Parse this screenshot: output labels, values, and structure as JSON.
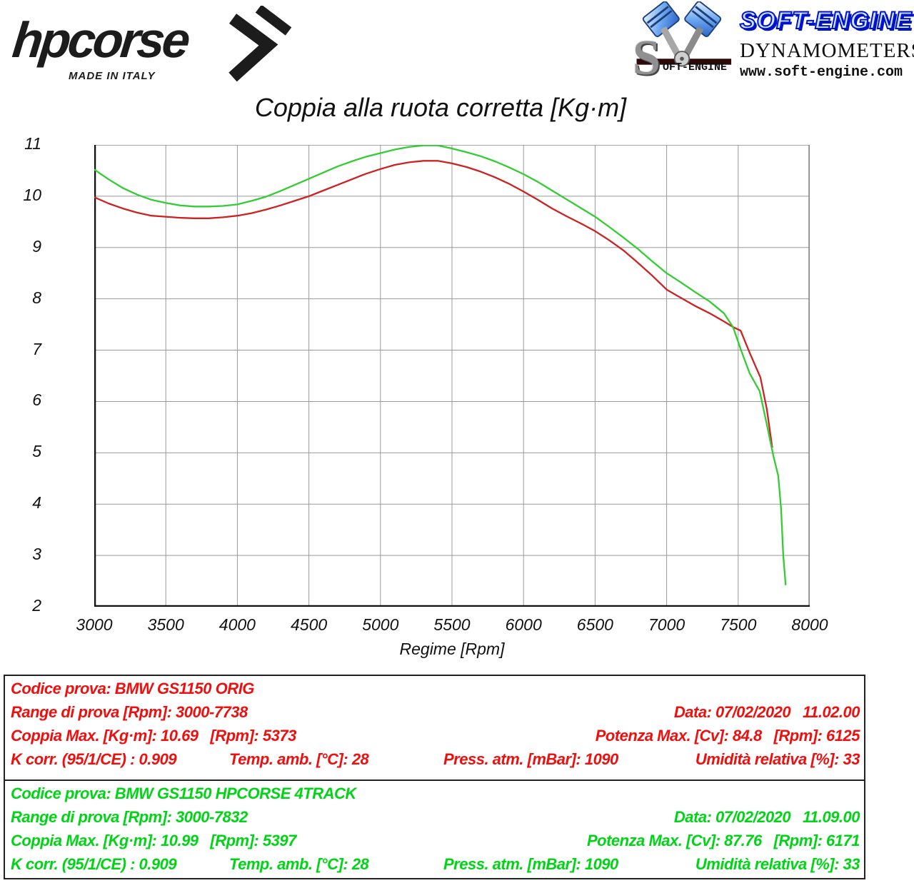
{
  "header": {
    "brand": "hpcorse",
    "made_in": "MADE IN ITALY",
    "soft_engine_s": "S",
    "soft_engine_oft": "OFT-ENGINE",
    "soft_engine": "SOFT-ENGINE",
    "dynamometers": "DYNAMOMETERS",
    "website": "www.soft-engine.com"
  },
  "chart_data": {
    "type": "line",
    "title": "Coppia alla ruota corretta [Kg·m]",
    "xlabel": "Regime [Rpm]",
    "ylabel": "",
    "xlim": [
      3000,
      8000
    ],
    "ylim": [
      2,
      11
    ],
    "x_ticks": [
      3000,
      3500,
      4000,
      4500,
      5000,
      5500,
      6000,
      6500,
      7000,
      7500,
      8000
    ],
    "y_ticks": [
      2,
      3,
      4,
      5,
      6,
      7,
      8,
      9,
      10,
      11
    ],
    "grid": true,
    "legend_position": "none",
    "series": [
      {
        "name": "BMW GS1150 ORIG",
        "color": "#cc2222",
        "points": [
          [
            3000,
            9.98
          ],
          [
            3100,
            9.86
          ],
          [
            3200,
            9.76
          ],
          [
            3300,
            9.68
          ],
          [
            3400,
            9.62
          ],
          [
            3500,
            9.6
          ],
          [
            3600,
            9.58
          ],
          [
            3700,
            9.57
          ],
          [
            3800,
            9.57
          ],
          [
            3900,
            9.59
          ],
          [
            4000,
            9.62
          ],
          [
            4100,
            9.67
          ],
          [
            4200,
            9.74
          ],
          [
            4300,
            9.82
          ],
          [
            4400,
            9.91
          ],
          [
            4500,
            10.0
          ],
          [
            4600,
            10.11
          ],
          [
            4700,
            10.22
          ],
          [
            4800,
            10.33
          ],
          [
            4900,
            10.44
          ],
          [
            5000,
            10.53
          ],
          [
            5100,
            10.61
          ],
          [
            5200,
            10.66
          ],
          [
            5300,
            10.69
          ],
          [
            5400,
            10.69
          ],
          [
            5500,
            10.64
          ],
          [
            5600,
            10.57
          ],
          [
            5700,
            10.48
          ],
          [
            5800,
            10.37
          ],
          [
            5900,
            10.24
          ],
          [
            6000,
            10.09
          ],
          [
            6100,
            9.93
          ],
          [
            6200,
            9.76
          ],
          [
            6300,
            9.61
          ],
          [
            6400,
            9.47
          ],
          [
            6500,
            9.32
          ],
          [
            6600,
            9.14
          ],
          [
            6700,
            8.94
          ],
          [
            6800,
            8.7
          ],
          [
            6900,
            8.45
          ],
          [
            7000,
            8.18
          ],
          [
            7100,
            8.02
          ],
          [
            7200,
            7.86
          ],
          [
            7300,
            7.72
          ],
          [
            7400,
            7.56
          ],
          [
            7464,
            7.45
          ],
          [
            7517,
            7.38
          ],
          [
            7580,
            6.95
          ],
          [
            7655,
            6.47
          ],
          [
            7700,
            5.85
          ],
          [
            7738,
            5.1
          ]
        ]
      },
      {
        "name": "BMW GS1150 HPCORSE 4TRACK",
        "color": "#33cc33",
        "points": [
          [
            3000,
            10.52
          ],
          [
            3100,
            10.33
          ],
          [
            3200,
            10.16
          ],
          [
            3300,
            10.03
          ],
          [
            3400,
            9.93
          ],
          [
            3500,
            9.87
          ],
          [
            3600,
            9.82
          ],
          [
            3700,
            9.8
          ],
          [
            3800,
            9.8
          ],
          [
            3900,
            9.81
          ],
          [
            4000,
            9.84
          ],
          [
            4100,
            9.91
          ],
          [
            4200,
            9.99
          ],
          [
            4300,
            10.1
          ],
          [
            4400,
            10.22
          ],
          [
            4500,
            10.34
          ],
          [
            4600,
            10.46
          ],
          [
            4700,
            10.58
          ],
          [
            4800,
            10.68
          ],
          [
            4900,
            10.77
          ],
          [
            5000,
            10.84
          ],
          [
            5100,
            10.91
          ],
          [
            5200,
            10.96
          ],
          [
            5300,
            10.99
          ],
          [
            5400,
            10.99
          ],
          [
            5500,
            10.93
          ],
          [
            5600,
            10.86
          ],
          [
            5700,
            10.78
          ],
          [
            5800,
            10.68
          ],
          [
            5900,
            10.56
          ],
          [
            6000,
            10.43
          ],
          [
            6100,
            10.28
          ],
          [
            6200,
            10.11
          ],
          [
            6300,
            9.94
          ],
          [
            6400,
            9.77
          ],
          [
            6500,
            9.6
          ],
          [
            6600,
            9.4
          ],
          [
            6700,
            9.19
          ],
          [
            6800,
            8.97
          ],
          [
            6900,
            8.73
          ],
          [
            7000,
            8.5
          ],
          [
            7100,
            8.32
          ],
          [
            7200,
            8.13
          ],
          [
            7300,
            7.95
          ],
          [
            7400,
            7.72
          ],
          [
            7464,
            7.45
          ],
          [
            7520,
            7.0
          ],
          [
            7580,
            6.55
          ],
          [
            7650,
            6.2
          ],
          [
            7700,
            5.55
          ],
          [
            7745,
            4.95
          ],
          [
            7780,
            4.55
          ],
          [
            7800,
            3.9
          ],
          [
            7815,
            3.0
          ],
          [
            7832,
            2.42
          ]
        ]
      }
    ]
  },
  "results": [
    {
      "color": "#ee0f0f",
      "codice": "Codice prova: BMW GS1150 ORIG",
      "range": "Range di prova [Rpm]: 3000-7738",
      "data": "Data: 07/02/2020   11.02.00",
      "coppia_max": "Coppia Max. [Kg·m]: 10.69   [Rpm]: 5373",
      "potenza_max": "Potenza Max. [Cv]: 84.8   [Rpm]: 6125",
      "k_corr": "K corr. (95/1/CE) : 0.909",
      "temp": "Temp. amb. [°C]: 28",
      "press": "Press. atm. [mBar]: 1090",
      "umidita": "Umidità relativa [%]: 33"
    },
    {
      "color": "#00d515",
      "codice": "Codice prova: BMW GS1150 HPCORSE 4TRACK",
      "range": "Range di prova [Rpm]: 3000-7832",
      "data": "Data: 07/02/2020   11.09.00",
      "coppia_max": "Coppia Max. [Kg·m]: 10.99   [Rpm]: 5397",
      "potenza_max": "Potenza Max. [Cv]: 87.76   [Rpm]: 6171",
      "k_corr": "K corr. (95/1/CE) : 0.909",
      "temp": "Temp. amb. [°C]: 28",
      "press": "Press. atm. [mBar]: 1090",
      "umidita": "Umidità relativa [%]: 33"
    }
  ]
}
